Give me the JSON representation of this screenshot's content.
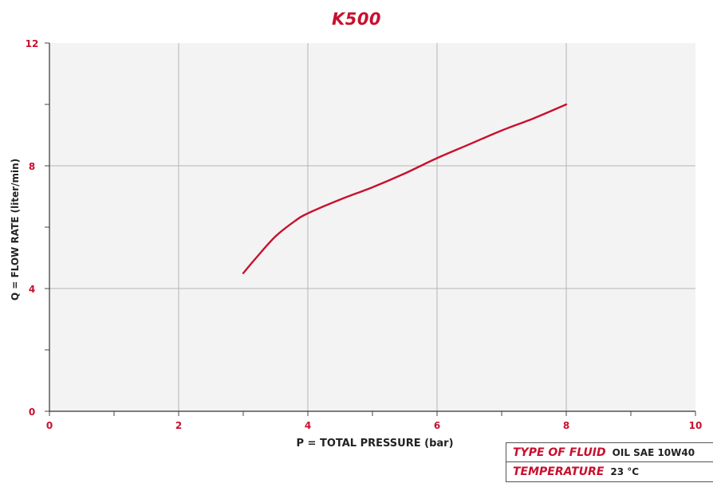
{
  "chart_data": {
    "type": "line",
    "title": "K500",
    "xlabel": "P = TOTAL PRESSURE (bar)",
    "ylabel": "Q = FLOW RATE (liter/min)",
    "xlim": [
      0,
      10
    ],
    "ylim": [
      0,
      12
    ],
    "x_ticks": [
      "0",
      "2",
      "4",
      "6",
      "8",
      "10"
    ],
    "y_ticks": [
      "0",
      "4",
      "8",
      "12"
    ],
    "grid": true,
    "series": [
      {
        "color": "#c8102e",
        "x": [
          3.0,
          3.2,
          3.5,
          3.8,
          4.0,
          4.5,
          5.0,
          5.5,
          6.0,
          6.5,
          7.0,
          7.5,
          8.0
        ],
        "y": [
          4.5,
          5.0,
          5.7,
          6.2,
          6.45,
          6.9,
          7.3,
          7.75,
          8.25,
          8.7,
          9.15,
          9.55,
          10.0
        ]
      }
    ]
  },
  "fluid_info": {
    "type_label": "TYPE OF FLUID",
    "type_value": "OIL SAE 10W40",
    "temp_label": "TEMPERATURE",
    "temp_value": "23 °C"
  }
}
